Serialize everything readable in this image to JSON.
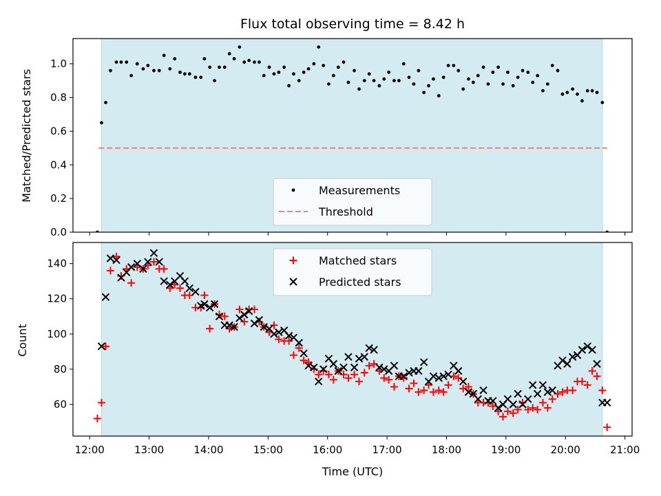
{
  "title": "Flux total observing time = 8.42 h",
  "chart_data": [
    {
      "type": "scatter",
      "panel": "top",
      "ylabel": "Matched/Predicted stars",
      "ylim": [
        0,
        1.15
      ],
      "yticks": [
        0.0,
        0.2,
        0.4,
        0.6,
        0.8,
        1.0
      ],
      "ytick_labels": [
        "0.0",
        "0.2",
        "0.4",
        "0.6",
        "0.8",
        "1.0"
      ],
      "xlim": [
        11.72,
        21.12
      ],
      "shaded_span": [
        12.2,
        20.62
      ],
      "shaded_color": "#add8e6",
      "threshold": {
        "name": "Threshold",
        "value": 0.5,
        "xrange": [
          12.15,
          20.7
        ],
        "color": "#f08080",
        "style": "dashed"
      },
      "legend": {
        "position": "bottom-center",
        "entries": [
          "Measurements",
          "Threshold"
        ]
      },
      "series": [
        {
          "name": "Measurements",
          "marker": "dot",
          "color": "#000000",
          "x": [
            12.13,
            12.2,
            12.27,
            12.35,
            12.45,
            12.53,
            12.62,
            12.7,
            12.8,
            12.9,
            12.98,
            13.08,
            13.17,
            13.25,
            13.35,
            13.43,
            13.52,
            13.6,
            13.68,
            13.78,
            13.87,
            13.93,
            14.02,
            14.1,
            14.18,
            14.27,
            14.35,
            14.43,
            14.52,
            14.6,
            14.68,
            14.77,
            14.85,
            14.93,
            15.02,
            15.1,
            15.18,
            15.27,
            15.35,
            15.43,
            15.52,
            15.6,
            15.68,
            15.77,
            15.85,
            15.93,
            16.02,
            16.1,
            16.18,
            16.27,
            16.35,
            16.45,
            16.53,
            16.62,
            16.7,
            16.78,
            16.87,
            16.95,
            17.03,
            17.12,
            17.2,
            17.28,
            17.37,
            17.45,
            17.53,
            17.62,
            17.7,
            17.78,
            17.87,
            17.95,
            18.03,
            18.12,
            18.2,
            18.28,
            18.37,
            18.45,
            18.53,
            18.62,
            18.7,
            18.78,
            18.87,
            18.95,
            19.03,
            19.12,
            19.2,
            19.28,
            19.37,
            19.45,
            19.53,
            19.62,
            19.7,
            19.78,
            19.87,
            19.95,
            20.03,
            20.12,
            20.2,
            20.28,
            20.37,
            20.45,
            20.53,
            20.62,
            20.7
          ],
          "y": [
            0.0,
            0.65,
            0.77,
            0.96,
            1.01,
            1.01,
            1.01,
            0.93,
            1.0,
            0.97,
            0.99,
            0.96,
            0.96,
            1.05,
            0.97,
            1.03,
            0.95,
            0.94,
            0.94,
            0.92,
            0.92,
            1.03,
            0.98,
            0.9,
            0.98,
            0.98,
            1.06,
            1.03,
            1.1,
            1.01,
            1.02,
            1.01,
            1.01,
            0.93,
            0.98,
            0.94,
            0.95,
            0.98,
            0.87,
            0.94,
            0.9,
            0.95,
            0.97,
            1.0,
            1.1,
            0.99,
            0.88,
            0.93,
            0.98,
            1.01,
            0.89,
            0.96,
            0.85,
            0.9,
            0.94,
            0.9,
            0.87,
            0.91,
            0.95,
            0.9,
            0.9,
            1.0,
            0.92,
            0.88,
            0.96,
            0.83,
            0.87,
            0.91,
            0.81,
            0.92,
            0.99,
            0.99,
            0.96,
            0.85,
            0.91,
            0.89,
            0.93,
            0.98,
            0.88,
            0.95,
            0.98,
            0.88,
            0.95,
            0.87,
            0.92,
            0.96,
            0.95,
            0.89,
            0.93,
            0.84,
            0.88,
            0.99,
            0.96,
            0.82,
            0.83,
            0.85,
            0.82,
            0.78,
            0.84,
            0.84,
            0.83,
            0.77,
            0.0
          ]
        }
      ]
    },
    {
      "type": "scatter",
      "panel": "bottom",
      "xlabel": "Time (UTC)",
      "ylabel": "Count",
      "ylim": [
        42,
        152
      ],
      "yticks": [
        60,
        80,
        100,
        120,
        140
      ],
      "ytick_labels": [
        "60",
        "80",
        "100",
        "120",
        "140"
      ],
      "xlim": [
        11.72,
        21.12
      ],
      "xticks": [
        12,
        13,
        14,
        15,
        16,
        17,
        18,
        19,
        20,
        21
      ],
      "xtick_labels": [
        "12:00",
        "13:00",
        "14:00",
        "15:00",
        "16:00",
        "17:00",
        "18:00",
        "19:00",
        "20:00",
        "21:00"
      ],
      "shaded_span": [
        12.2,
        20.62
      ],
      "shaded_color": "#add8e6",
      "legend": {
        "position": "top-center",
        "entries": [
          "Matched stars",
          "Predicted stars"
        ]
      },
      "series": [
        {
          "name": "Matched stars",
          "marker": "plus",
          "color": "#ff0000",
          "x": [
            12.13,
            12.2,
            12.27,
            12.35,
            12.45,
            12.53,
            12.62,
            12.7,
            12.8,
            12.9,
            12.98,
            13.08,
            13.17,
            13.25,
            13.35,
            13.43,
            13.52,
            13.6,
            13.68,
            13.78,
            13.87,
            13.93,
            14.02,
            14.1,
            14.18,
            14.27,
            14.35,
            14.43,
            14.52,
            14.6,
            14.68,
            14.77,
            14.85,
            14.93,
            15.02,
            15.1,
            15.18,
            15.27,
            15.35,
            15.43,
            15.52,
            15.6,
            15.68,
            15.77,
            15.85,
            15.93,
            16.02,
            16.1,
            16.18,
            16.27,
            16.35,
            16.45,
            16.53,
            16.62,
            16.7,
            16.78,
            16.87,
            16.95,
            17.03,
            17.12,
            17.2,
            17.28,
            17.37,
            17.45,
            17.53,
            17.62,
            17.7,
            17.78,
            17.87,
            17.95,
            18.03,
            18.12,
            18.2,
            18.28,
            18.37,
            18.45,
            18.53,
            18.62,
            18.7,
            18.78,
            18.87,
            18.95,
            19.03,
            19.12,
            19.2,
            19.28,
            19.37,
            19.45,
            19.53,
            19.62,
            19.7,
            19.78,
            19.87,
            19.95,
            20.03,
            20.12,
            20.2,
            20.28,
            20.37,
            20.45,
            20.53,
            20.62,
            20.7
          ],
          "y": [
            52,
            61,
            93,
            136,
            144,
            133,
            137,
            129,
            138,
            137,
            139,
            141,
            137,
            137,
            126,
            128,
            126,
            122,
            122,
            115,
            115,
            122,
            103,
            117,
            111,
            110,
            103,
            104,
            114,
            107,
            114,
            114,
            107,
            104,
            101,
            105,
            97,
            96,
            96,
            88,
            92,
            85,
            84,
            80,
            77,
            79,
            77,
            74,
            79,
            77,
            75,
            77,
            73,
            78,
            82,
            83,
            79,
            75,
            74,
            70,
            76,
            75,
            69,
            72,
            67,
            68,
            71,
            67,
            68,
            67,
            71,
            76,
            75,
            69,
            70,
            66,
            61,
            61,
            61,
            59,
            56,
            53,
            56,
            55,
            57,
            61,
            57,
            58,
            57,
            61,
            58,
            63,
            66,
            67,
            68,
            68,
            73,
            73,
            71,
            79,
            76,
            68,
            47
          ]
        },
        {
          "name": "Predicted stars",
          "marker": "x",
          "color": "#000000",
          "x": [
            12.2,
            12.27,
            12.35,
            12.45,
            12.53,
            12.62,
            12.7,
            12.8,
            12.9,
            12.98,
            13.08,
            13.17,
            13.25,
            13.35,
            13.43,
            13.52,
            13.6,
            13.68,
            13.78,
            13.87,
            13.93,
            14.02,
            14.1,
            14.18,
            14.27,
            14.35,
            14.43,
            14.52,
            14.6,
            14.68,
            14.77,
            14.85,
            14.93,
            15.02,
            15.1,
            15.18,
            15.27,
            15.35,
            15.43,
            15.52,
            15.6,
            15.68,
            15.77,
            15.85,
            15.93,
            16.02,
            16.1,
            16.18,
            16.27,
            16.35,
            16.45,
            16.53,
            16.62,
            16.7,
            16.78,
            16.87,
            16.95,
            17.03,
            17.12,
            17.2,
            17.28,
            17.37,
            17.45,
            17.53,
            17.62,
            17.7,
            17.78,
            17.87,
            17.95,
            18.03,
            18.12,
            18.2,
            18.28,
            18.37,
            18.45,
            18.53,
            18.62,
            18.7,
            18.78,
            18.87,
            18.95,
            19.03,
            19.12,
            19.2,
            19.28,
            19.37,
            19.45,
            19.53,
            19.62,
            19.7,
            19.78,
            19.87,
            19.95,
            20.03,
            20.12,
            20.2,
            20.28,
            20.37,
            20.45,
            20.53,
            20.62,
            20.7
          ],
          "y": [
            93,
            121,
            143,
            142,
            132,
            135,
            138,
            140,
            137,
            141,
            146,
            141,
            130,
            128,
            130,
            133,
            130,
            126,
            124,
            116,
            117,
            115,
            117,
            110,
            105,
            105,
            104,
            109,
            111,
            113,
            106,
            108,
            104,
            103,
            100,
            101,
            102,
            99,
            98,
            95,
            89,
            82,
            81,
            73,
            80,
            86,
            83,
            79,
            81,
            87,
            81,
            86,
            87,
            92,
            91,
            81,
            80,
            79,
            82,
            76,
            76,
            78,
            79,
            79,
            84,
            73,
            76,
            75,
            76,
            77,
            82,
            79,
            73,
            67,
            66,
            63,
            68,
            62,
            62,
            58,
            60,
            63,
            60,
            66,
            60,
            63,
            71,
            66,
            71,
            67,
            68,
            82,
            85,
            83,
            87,
            88,
            91,
            93,
            91,
            83,
            61,
            61
          ]
        }
      ]
    }
  ]
}
